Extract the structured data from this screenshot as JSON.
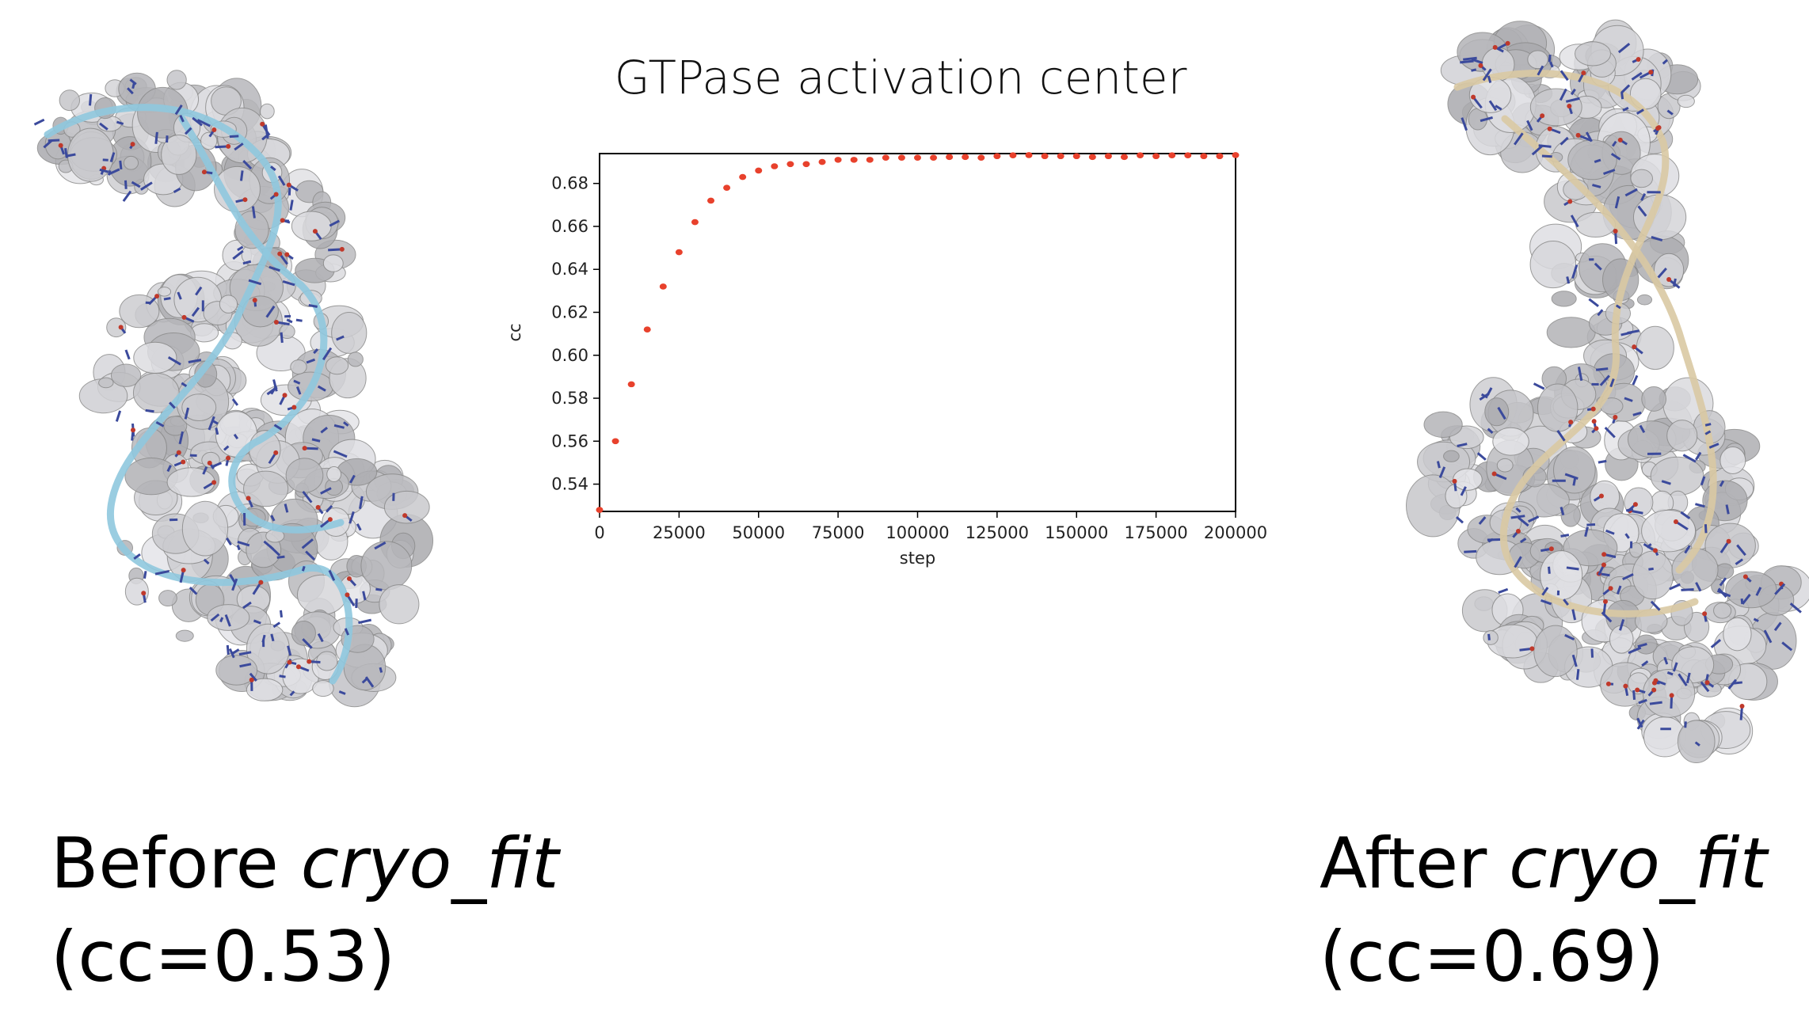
{
  "figure": {
    "title": "GTPase activation center",
    "left_panel": {
      "label_prefix": "Before ",
      "label_tool": "cryo_fit",
      "label_cc": "(cc=0.53)"
    },
    "right_panel": {
      "label_prefix": "After ",
      "label_tool": "cryo_fit",
      "label_cc": "(cc=0.69)"
    }
  },
  "colors": {
    "marker": "#e8412c",
    "density": "#bdbdbd",
    "ribbon_before": "#8fc8de",
    "ribbon_after": "#d9c9a3",
    "atoms": "#3b4a9c"
  },
  "chart_data": {
    "type": "scatter",
    "title": "GTPase activation center",
    "xlabel": "step",
    "ylabel": "cc",
    "xlim": [
      0,
      200000
    ],
    "ylim": [
      0.5273,
      0.6939
    ],
    "xticks": [
      0,
      25000,
      50000,
      75000,
      100000,
      125000,
      150000,
      175000,
      200000
    ],
    "yticks": [
      0.54,
      0.56,
      0.58,
      0.6,
      0.62,
      0.64,
      0.66,
      0.68
    ],
    "ytick_labels": [
      "0.54",
      "0.56",
      "0.58",
      "0.60",
      "0.62",
      "0.64",
      "0.66",
      "0.68"
    ],
    "grid": false,
    "legend": "none",
    "x": [
      0,
      5000,
      10000,
      15000,
      20000,
      25000,
      30000,
      35000,
      40000,
      45000,
      50000,
      55000,
      60000,
      65000,
      70000,
      75000,
      80000,
      85000,
      90000,
      95000,
      100000,
      105000,
      110000,
      115000,
      120000,
      125000,
      130000,
      135000,
      140000,
      145000,
      150000,
      155000,
      160000,
      165000,
      170000,
      175000,
      180000,
      185000,
      190000,
      195000,
      200000
    ],
    "y": [
      0.528,
      0.56,
      0.5865,
      0.612,
      0.632,
      0.648,
      0.662,
      0.672,
      0.678,
      0.683,
      0.686,
      0.688,
      0.689,
      0.689,
      0.69,
      0.691,
      0.691,
      0.691,
      0.692,
      0.692,
      0.692,
      0.692,
      0.6923,
      0.6923,
      0.692,
      0.6927,
      0.6931,
      0.6932,
      0.6927,
      0.6927,
      0.6927,
      0.6923,
      0.6927,
      0.6923,
      0.6931,
      0.6927,
      0.6931,
      0.6931,
      0.6927,
      0.6927,
      0.6932
    ]
  }
}
